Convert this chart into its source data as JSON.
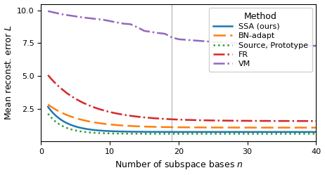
{
  "title": "",
  "xlabel": "Number of subspace bases $n$",
  "ylabel": "Mean reconst. error $L$",
  "xlim": [
    0,
    40
  ],
  "ylim": [
    0,
    10.5
  ],
  "yticks": [
    2.5,
    5.0,
    7.5,
    10.0
  ],
  "xticks": [
    0,
    10,
    20,
    30,
    40
  ],
  "vline_x": 19,
  "legend_title": "Method",
  "methods": {
    "SSA (ours)": {
      "color": "#1f77b4",
      "linestyle": "solid",
      "linewidth": 1.8,
      "zorder": 5
    },
    "BN-adapt": {
      "color": "#ff7f0e",
      "linestyle": "dashed",
      "linewidth": 1.8,
      "zorder": 4
    },
    "Source, Prototype": {
      "color": "#2ca02c",
      "linestyle": "dotted",
      "linewidth": 1.8,
      "zorder": 3
    },
    "FR": {
      "color": "#d62728",
      "linestyle": "dashdot",
      "linewidth": 1.8,
      "zorder": 2
    },
    "VM": {
      "color": "#9467bd",
      "linestyle": "dashdot",
      "linewidth": 1.8,
      "zorder": 1
    }
  },
  "ssa_params": [
    2.8,
    0.38,
    0.72
  ],
  "bn_adapt_params": [
    2.2,
    0.22,
    1.05
  ],
  "source_proto_params": [
    2.4,
    0.45,
    0.58
  ],
  "fr_params": [
    4.2,
    0.18,
    1.55
  ]
}
